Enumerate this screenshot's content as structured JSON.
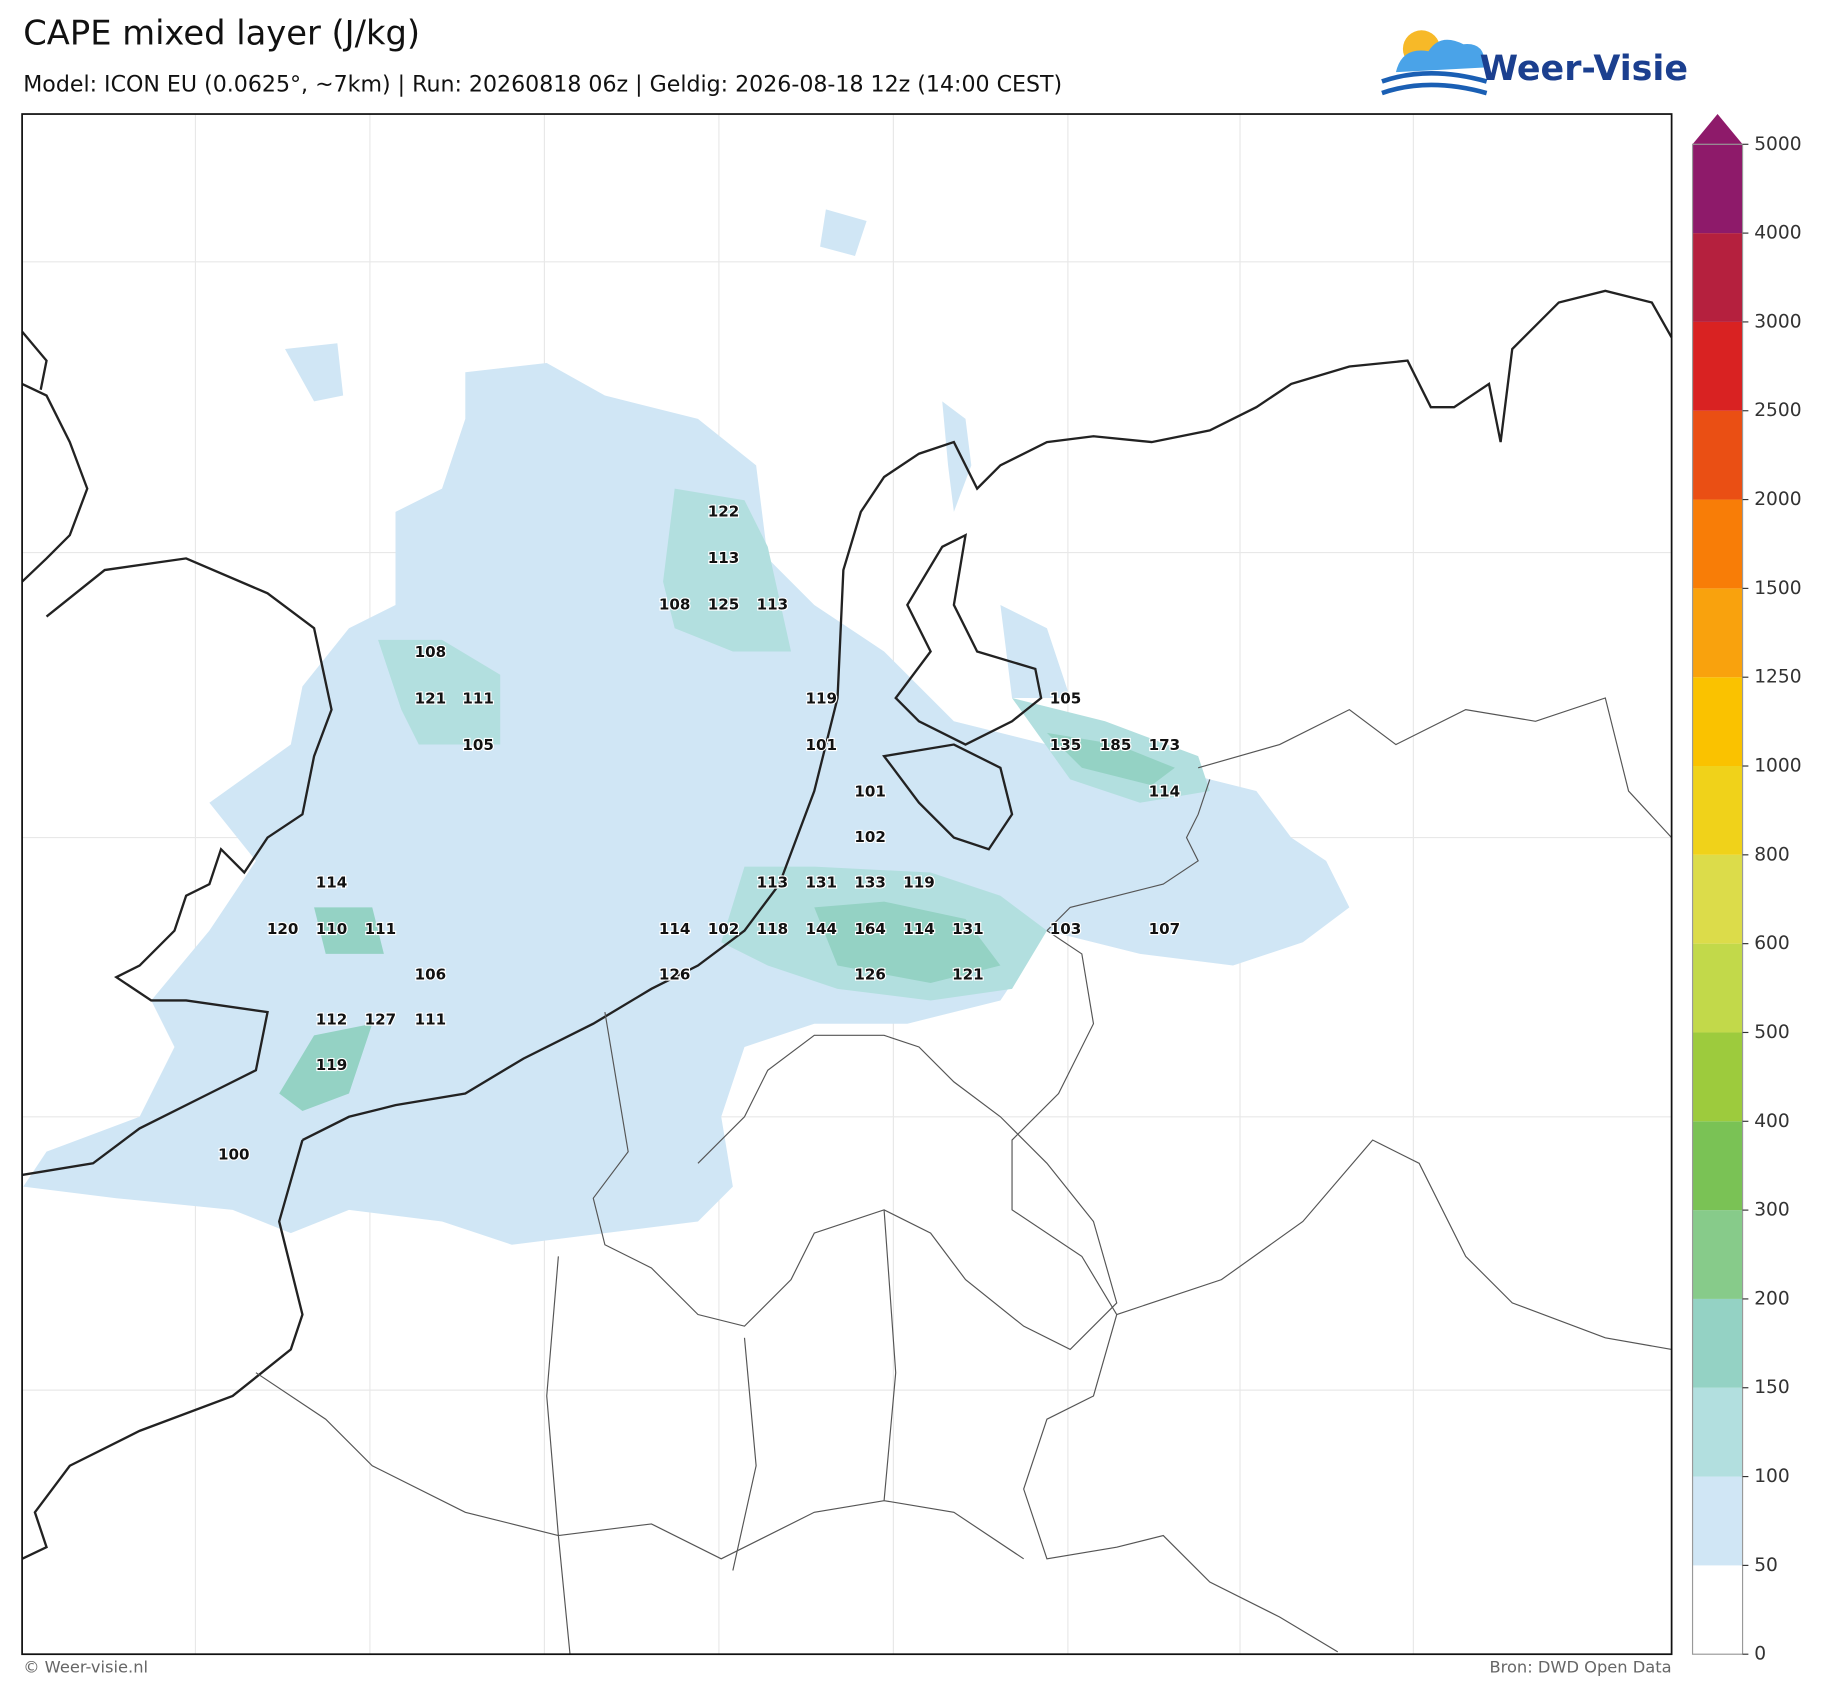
{
  "header": {
    "title": "CAPE mixed layer (J/kg)",
    "subtitle": "Model: ICON EU (0.0625°, ~7km)  |  Run: 20260818 06z  |  Geldig: 2026-08-18 12z (14:00 CEST)",
    "logo": "Weer-Visie"
  },
  "colorbar": {
    "ticks": [
      0,
      50,
      100,
      150,
      200,
      300,
      400,
      500,
      600,
      800,
      1000,
      1250,
      1500,
      2000,
      2500,
      3000,
      4000,
      5000
    ],
    "colors": [
      "#ffffff",
      "#d0e6f5",
      "#b2dfdf",
      "#94d2c4",
      "#87cb8a",
      "#7ac255",
      "#9dcb3d",
      "#c2d94a",
      "#dcdc4a",
      "#f0d21a",
      "#fac200",
      "#f9a20d",
      "#f87d07",
      "#ea4f14",
      "#d92222",
      "#b5203e",
      "#8e1a6a"
    ]
  },
  "map_labels": [
    122,
    113,
    108,
    125,
    113,
    108,
    121,
    111,
    105,
    119,
    101,
    105,
    135,
    185,
    173,
    114,
    101,
    102,
    114,
    113,
    131,
    133,
    119,
    120,
    110,
    111,
    114,
    102,
    118,
    144,
    164,
    114,
    131,
    103,
    107,
    106,
    126,
    126,
    121,
    112,
    127,
    111,
    119,
    100
  ],
  "footer": {
    "left": "© Weer-visie.nl",
    "right": "Bron: DWD Open Data"
  }
}
